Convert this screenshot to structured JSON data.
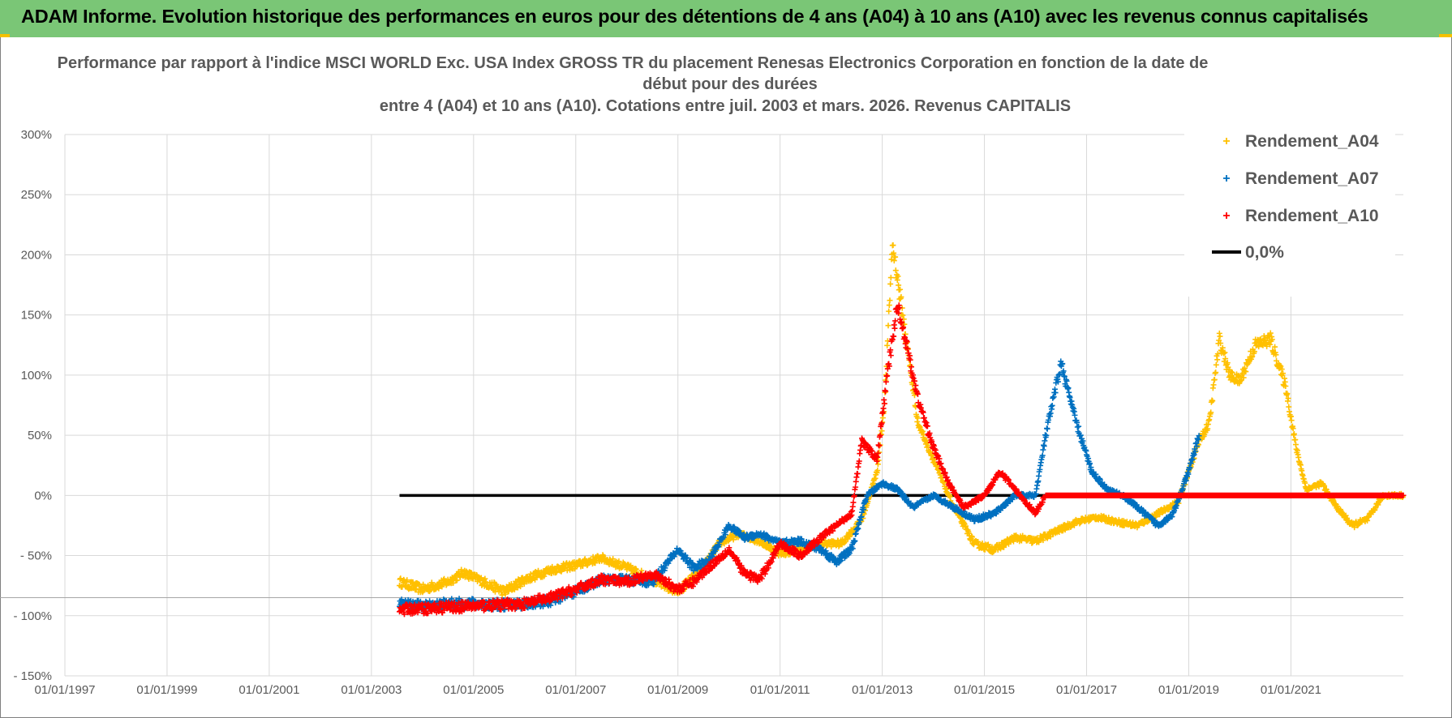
{
  "header": {
    "title": "ADAM Informe. Evolution historique des performances en euros pour des détentions de 4 ans (A04) à 10 ans (A10) avec les revenus connus capitalisés"
  },
  "colors": {
    "banner": "#7ac676",
    "a04": "#ffc000",
    "a07": "#0070c0",
    "a10": "#ff0000",
    "zero": "#000000"
  },
  "chart_data": {
    "type": "scatter",
    "title": [
      "Performance par rapport à l'indice MSCI WORLD Exc. USA Index GROSS TR  du placement Renesas Electronics Corporation en fonction de la date de",
      "début pour des durées",
      "entre 4 (A04) et 10 ans (A10). Cotations entre juil. 2003 et mars. 2026. Revenus CAPITALIS"
    ],
    "xlabel": "",
    "ylabel": "",
    "xlim": [
      1997.0,
      2023.2
    ],
    "ylim": [
      -150,
      300
    ],
    "x_tick_values": [
      1997,
      1999,
      2001,
      2003,
      2005,
      2007,
      2009,
      2011,
      2013,
      2015,
      2017,
      2019,
      2021
    ],
    "x_tick_labels": [
      "01/01/1997",
      "01/01/1999",
      "01/01/2001",
      "01/01/2003",
      "01/01/2005",
      "01/01/2007",
      "01/01/2009",
      "01/01/2011",
      "01/01/2013",
      "01/01/2015",
      "01/01/2017",
      "01/01/2019",
      "01/01/2021"
    ],
    "y_tick_values": [
      300,
      250,
      200,
      150,
      100,
      50,
      0,
      -50,
      -100,
      -150
    ],
    "y_tick_labels": [
      "300%",
      "250%",
      "200%",
      "150%",
      "100%",
      "50%",
      "0%",
      "- 50%",
      "- 100%",
      "- 150%"
    ],
    "grid": true,
    "legend_position": "top-right",
    "series": [
      {
        "name": "Rendement_A04",
        "color": "#ffc000",
        "marker": "+",
        "x": [
          2003.55,
          2004.0,
          2004.5,
          2004.8,
          2005.2,
          2005.6,
          2006.0,
          2006.5,
          2007.0,
          2007.5,
          2008.0,
          2008.5,
          2009.0,
          2009.5,
          2009.8,
          2010.2,
          2010.6,
          2011.0,
          2011.4,
          2011.8,
          2012.2,
          2012.6,
          2012.9,
          2013.05,
          2013.2,
          2013.4,
          2013.7,
          2014.0,
          2014.4,
          2014.8,
          2015.2,
          2015.6,
          2016.0,
          2016.4,
          2016.8,
          2017.2,
          2017.6,
          2018.0,
          2018.4,
          2018.8,
          2019.0,
          2019.2,
          2019.4,
          2019.6,
          2019.8,
          2020.0,
          2020.3,
          2020.6,
          2020.9,
          2021.1,
          2021.3,
          2021.6,
          2021.9,
          2022.2,
          2022.5,
          2022.8,
          2023.2
        ],
        "y": [
          -72,
          -78,
          -72,
          -64,
          -72,
          -80,
          -70,
          -62,
          -58,
          -52,
          -60,
          -70,
          -80,
          -60,
          -40,
          -32,
          -38,
          -48,
          -45,
          -40,
          -40,
          -20,
          20,
          80,
          210,
          150,
          60,
          30,
          -10,
          -40,
          -45,
          -35,
          -38,
          -30,
          -22,
          -18,
          -22,
          -25,
          -15,
          -5,
          20,
          45,
          60,
          130,
          100,
          95,
          125,
          130,
          90,
          40,
          5,
          10,
          -10,
          -25,
          -20,
          0,
          0
        ]
      },
      {
        "name": "Rendement_A07",
        "color": "#0070c0",
        "marker": "+",
        "x": [
          2003.55,
          2004.0,
          2004.5,
          2005.0,
          2005.5,
          2006.0,
          2006.5,
          2007.0,
          2007.5,
          2008.0,
          2008.5,
          2009.0,
          2009.3,
          2009.6,
          2010.0,
          2010.3,
          2010.6,
          2011.0,
          2011.4,
          2011.8,
          2012.1,
          2012.4,
          2012.7,
          2013.0,
          2013.3,
          2013.6,
          2014.0,
          2014.4,
          2014.8,
          2015.2,
          2015.6,
          2016.0,
          2016.2,
          2016.5,
          2016.8,
          2017.1,
          2017.4,
          2017.7,
          2018.0,
          2018.4,
          2018.7,
          2019.0,
          2019.2
        ],
        "y": [
          -90,
          -92,
          -90,
          -90,
          -91,
          -90,
          -88,
          -80,
          -70,
          -70,
          -72,
          -45,
          -60,
          -55,
          -25,
          -35,
          -32,
          -40,
          -38,
          -45,
          -55,
          -45,
          0,
          10,
          5,
          -10,
          0,
          -10,
          -20,
          -15,
          0,
          0,
          50,
          110,
          60,
          20,
          5,
          0,
          -10,
          -25,
          -15,
          20,
          50
        ]
      },
      {
        "name": "Rendement_A10",
        "color": "#ff0000",
        "marker": "+",
        "x": [
          2003.55,
          2004.0,
          2004.5,
          2005.0,
          2005.5,
          2006.0,
          2006.5,
          2007.0,
          2007.5,
          2008.0,
          2008.5,
          2009.0,
          2009.3,
          2009.6,
          2010.0,
          2010.3,
          2010.6,
          2011.0,
          2011.4,
          2011.8,
          2012.1,
          2012.4,
          2012.6,
          2012.9,
          2013.1,
          2013.3,
          2013.5,
          2013.7,
          2014.0,
          2014.3,
          2014.6,
          2015.0,
          2015.3,
          2015.7,
          2016.0,
          2016.2,
          2016.5,
          2023.2
        ],
        "y": [
          -95,
          -94,
          -93,
          -92,
          -91,
          -90,
          -85,
          -78,
          -70,
          -72,
          -65,
          -78,
          -72,
          -60,
          -45,
          -65,
          -70,
          -40,
          -50,
          -35,
          -25,
          -15,
          45,
          30,
          100,
          160,
          120,
          80,
          40,
          10,
          -10,
          0,
          20,
          0,
          -15,
          0,
          0,
          0
        ]
      },
      {
        "name": "0,0%",
        "color": "#000000",
        "marker": "line",
        "x": [
          2003.55,
          2023.2
        ],
        "y": [
          0,
          0
        ]
      }
    ]
  }
}
